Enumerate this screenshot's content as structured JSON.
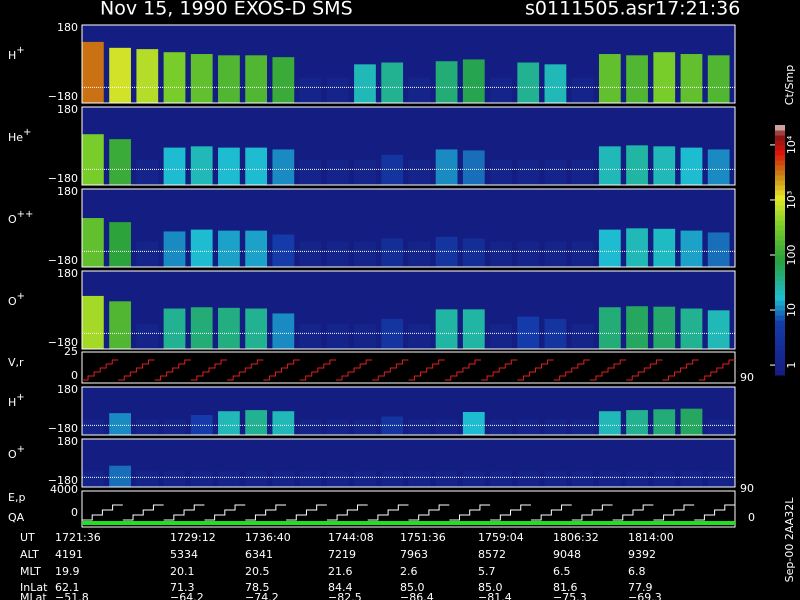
{
  "header": {
    "title": "Nov 15, 1990   EXOS-D SMS",
    "file": "s0111505.asr",
    "time": "17:21:36"
  },
  "chart_data": {
    "type": "spectrogram",
    "panels": [
      {
        "label": "H",
        "sup": "+",
        "ytop": "180",
        "ybottom": "−180",
        "values": [
          3000,
          800,
          600,
          300,
          200,
          150,
          150,
          100,
          1,
          1,
          20,
          30,
          1,
          40,
          60,
          1,
          30,
          20,
          1,
          200,
          150,
          300,
          200,
          150
        ]
      },
      {
        "label": "He",
        "sup": "+",
        "ytop": "180",
        "ybottom": "−180",
        "values": [
          300,
          100,
          1,
          15,
          20,
          15,
          15,
          10,
          1,
          1,
          1,
          3,
          1,
          10,
          8,
          1,
          1,
          1,
          1,
          20,
          25,
          20,
          15,
          10
        ]
      },
      {
        "label": "O",
        "sup": "++",
        "ytop": "180",
        "ybottom": "−180",
        "values": [
          200,
          80,
          1,
          10,
          15,
          12,
          12,
          5,
          1,
          1,
          1,
          2,
          1,
          3,
          2,
          1,
          1,
          1,
          1,
          15,
          20,
          18,
          12,
          8
        ]
      },
      {
        "label": "O",
        "sup": "+",
        "ytop": "180",
        "ybottom": "−180",
        "values": [
          500,
          150,
          1,
          30,
          40,
          35,
          30,
          10,
          1,
          1,
          1,
          3,
          1,
          25,
          25,
          1,
          5,
          3,
          1,
          40,
          50,
          45,
          30,
          20
        ]
      },
      {
        "label": "H",
        "sup": "+",
        "ytop": "180",
        "ybottom": "−180",
        "values": [
          1,
          10,
          1,
          1,
          5,
          20,
          30,
          20,
          1,
          1,
          1,
          3,
          1,
          1,
          15,
          1,
          1,
          1,
          1,
          20,
          30,
          40,
          50,
          1
        ]
      },
      {
        "label": "O",
        "sup": "+",
        "ytop": "180",
        "ybottom": "−180",
        "values": [
          1,
          8,
          1,
          1,
          1,
          1,
          1,
          1,
          1,
          1,
          1,
          1,
          1,
          1,
          1,
          1,
          1,
          1,
          1,
          1,
          1,
          1,
          1,
          1
        ]
      }
    ],
    "vr": {
      "label": "V,r",
      "ytop": "25",
      "ybottom": "0",
      "right": "90"
    },
    "ep": {
      "label": "E,p",
      "label2": "QA",
      "ytop": "4000",
      "ybottom": "0",
      "right_top": "90",
      "right_bottom": "0"
    },
    "colorbar": {
      "label": "Ct/Smp",
      "log_scale": true,
      "clim": [
        0.66,
        23000
      ],
      "ticks": [
        1,
        10,
        100,
        {
          "value": 1000,
          "label": "10³"
        },
        {
          "value": 10000,
          "label": "10⁴"
        }
      ]
    },
    "footer": "Sep-00  2AA32L"
  },
  "table": {
    "row_labels": [
      "UT",
      "ALT",
      "MLT",
      "InLat",
      "MLat"
    ],
    "rows": [
      [
        "1721:36",
        "1729:12",
        "1736:40",
        "1744:08",
        "1751:36",
        "1759:04",
        "1806:32",
        "1814:00"
      ],
      [
        "4191",
        "5334",
        "6341",
        "7219",
        "7963",
        "8572",
        "9048",
        "9392"
      ],
      [
        "19.9",
        "20.1",
        "20.5",
        "21.6",
        "2.6",
        "5.7",
        "6.5",
        "6.8"
      ],
      [
        "62.1",
        "71.3",
        "78.5",
        "84.4",
        "85.0",
        "85.0",
        "81.6",
        "77.9"
      ],
      [
        "−51.8",
        "−64.2",
        "−74.2",
        "−82.5",
        "−86.4",
        "−81.4",
        "−75.3",
        "−69.3"
      ]
    ]
  }
}
